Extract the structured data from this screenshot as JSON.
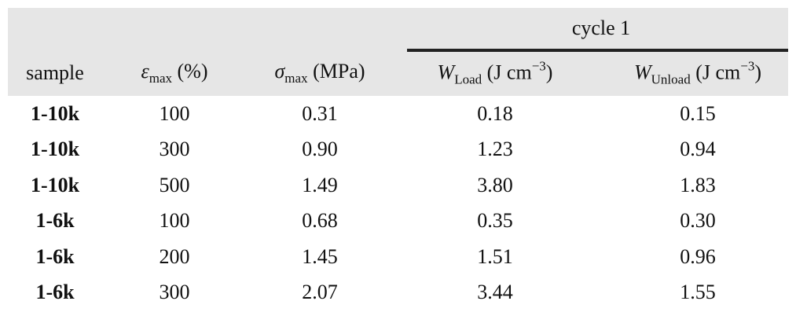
{
  "table": {
    "group_header": "cycle 1",
    "columns": [
      {
        "text": "sample"
      },
      {
        "symbol": "ε",
        "sub": "max",
        "unit": "(%)"
      },
      {
        "symbol": "σ",
        "sub": "max",
        "unit": "(MPa)"
      },
      {
        "symbol": "W",
        "sub": "Load",
        "unit": "(J cm",
        "sup": "−3",
        "close": ")"
      },
      {
        "symbol": "W",
        "sub": "Unload",
        "unit": "(J cm",
        "sup": "−3",
        "close": ")"
      }
    ],
    "rows": [
      [
        "1-10k",
        "100",
        "0.31",
        "0.18",
        "0.15"
      ],
      [
        "1-10k",
        "300",
        "0.90",
        "1.23",
        "0.94"
      ],
      [
        "1-10k",
        "500",
        "1.49",
        "3.80",
        "1.83"
      ],
      [
        "1-6k",
        "100",
        "0.68",
        "0.35",
        "0.30"
      ],
      [
        "1-6k",
        "200",
        "1.45",
        "1.51",
        "0.96"
      ],
      [
        "1-6k",
        "300",
        "2.07",
        "3.44",
        "1.55"
      ]
    ]
  }
}
